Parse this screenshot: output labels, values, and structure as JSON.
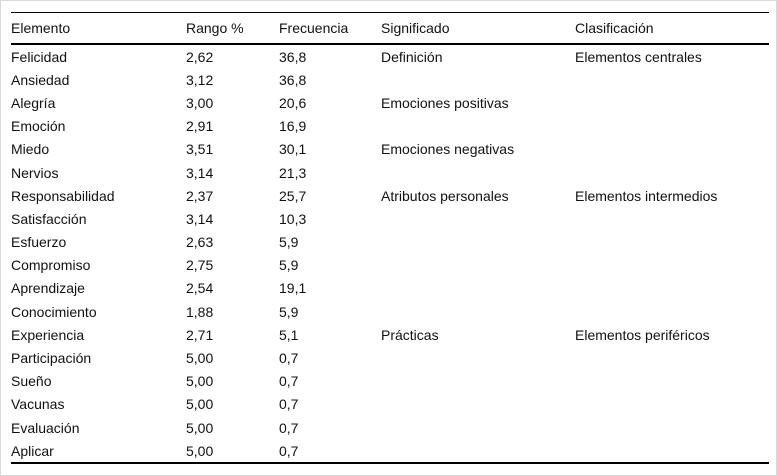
{
  "table": {
    "columns": [
      {
        "key": "elemento",
        "label": "Elemento"
      },
      {
        "key": "rango",
        "label": "Rango %"
      },
      {
        "key": "frecuencia",
        "label": "Frecuencia"
      },
      {
        "key": "significado",
        "label": "Significado"
      },
      {
        "key": "clasificacion",
        "label": "Clasificación"
      }
    ],
    "rows": [
      {
        "elemento": "Felicidad",
        "rango": "2,62",
        "frecuencia": "36,8",
        "significado": "Definición",
        "clasificacion": "Elementos centrales"
      },
      {
        "elemento": "Ansiedad",
        "rango": "3,12",
        "frecuencia": "36,8",
        "significado": "",
        "clasificacion": ""
      },
      {
        "elemento": "Alegría",
        "rango": "3,00",
        "frecuencia": "20,6",
        "significado": "Emociones positivas",
        "clasificacion": ""
      },
      {
        "elemento": "Emoción",
        "rango": "2,91",
        "frecuencia": "16,9",
        "significado": "",
        "clasificacion": ""
      },
      {
        "elemento": "Miedo",
        "rango": "3,51",
        "frecuencia": "30,1",
        "significado": "Emociones negativas",
        "clasificacion": ""
      },
      {
        "elemento": "Nervios",
        "rango": "3,14",
        "frecuencia": "21,3",
        "significado": "",
        "clasificacion": ""
      },
      {
        "elemento": "Responsabilidad",
        "rango": "2,37",
        "frecuencia": "25,7",
        "significado": "Atributos personales",
        "clasificacion": "Elementos intermedios"
      },
      {
        "elemento": "Satisfacción",
        "rango": "3,14",
        "frecuencia": "10,3",
        "significado": "",
        "clasificacion": ""
      },
      {
        "elemento": "Esfuerzo",
        "rango": "2,63",
        "frecuencia": "5,9",
        "significado": "",
        "clasificacion": ""
      },
      {
        "elemento": "Compromiso",
        "rango": "2,75",
        "frecuencia": "5,9",
        "significado": "",
        "clasificacion": ""
      },
      {
        "elemento": "Aprendizaje",
        "rango": "2,54",
        "frecuencia": "19,1",
        "significado": "",
        "clasificacion": ""
      },
      {
        "elemento": "Conocimiento",
        "rango": "1,88",
        "frecuencia": "5,9",
        "significado": "",
        "clasificacion": ""
      },
      {
        "elemento": "Experiencia",
        "rango": "2,71",
        "frecuencia": "5,1",
        "significado": "Prácticas",
        "clasificacion": "Elementos periféricos"
      },
      {
        "elemento": "Participación",
        "rango": "5,00",
        "frecuencia": "0,7",
        "significado": "",
        "clasificacion": ""
      },
      {
        "elemento": "Sueño",
        "rango": "5,00",
        "frecuencia": "0,7",
        "significado": "",
        "clasificacion": ""
      },
      {
        "elemento": "Vacunas",
        "rango": "5,00",
        "frecuencia": "0,7",
        "significado": "",
        "clasificacion": ""
      },
      {
        "elemento": "Evaluación",
        "rango": "5,00",
        "frecuencia": "0,7",
        "significado": "",
        "clasificacion": ""
      },
      {
        "elemento": "Aplicar",
        "rango": "5,00",
        "frecuencia": "0,7",
        "significado": "",
        "clasificacion": ""
      }
    ]
  },
  "colors": {
    "rule": "#000000",
    "text": "#111111",
    "background": "#ffffff",
    "frame": "#d9d9d9"
  }
}
